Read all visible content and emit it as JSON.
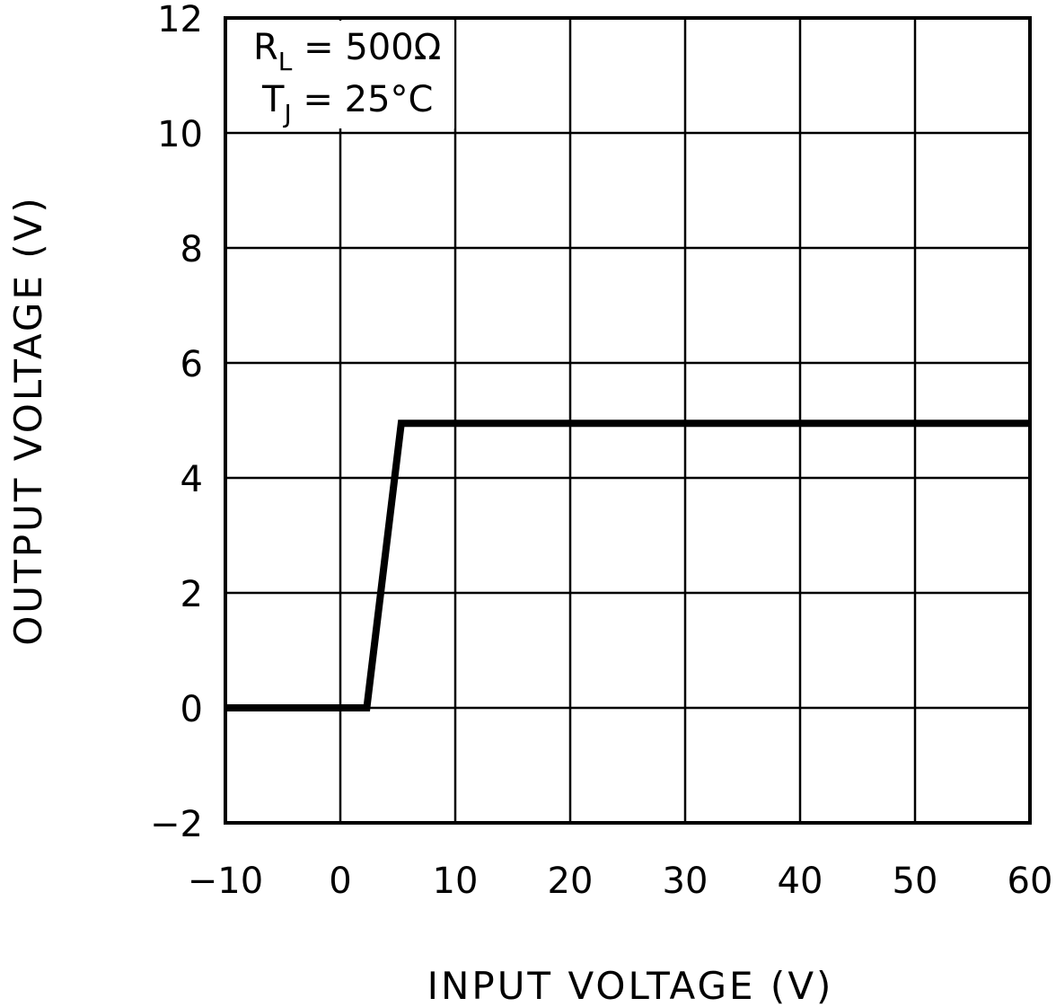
{
  "chart_data": {
    "type": "line",
    "xlabel": "INPUT VOLTAGE (V)",
    "ylabel": "OUTPUT VOLTAGE (V)",
    "xlim": [
      -10,
      60
    ],
    "ylim": [
      -2,
      12
    ],
    "xticks": [
      -10,
      0,
      10,
      20,
      30,
      40,
      50,
      60
    ],
    "yticks": [
      -2,
      0,
      2,
      4,
      6,
      8,
      10,
      12
    ],
    "xtick_labels": [
      "−10",
      "0",
      "10",
      "20",
      "30",
      "40",
      "50",
      "60"
    ],
    "ytick_labels": [
      "−2",
      "0",
      "2",
      "4",
      "6",
      "8",
      "10",
      "12"
    ],
    "grid": true,
    "annotations": [
      {
        "text": "R",
        "sub": "L",
        "rest": " = 500Ω"
      },
      {
        "text": "T",
        "sub": "J",
        "rest": " = 25°C"
      }
    ],
    "series": [
      {
        "x": [
          -10,
          2.3,
          5.3,
          60
        ],
        "y": [
          0,
          0,
          4.95,
          4.95
        ],
        "color": "#000000"
      }
    ]
  }
}
